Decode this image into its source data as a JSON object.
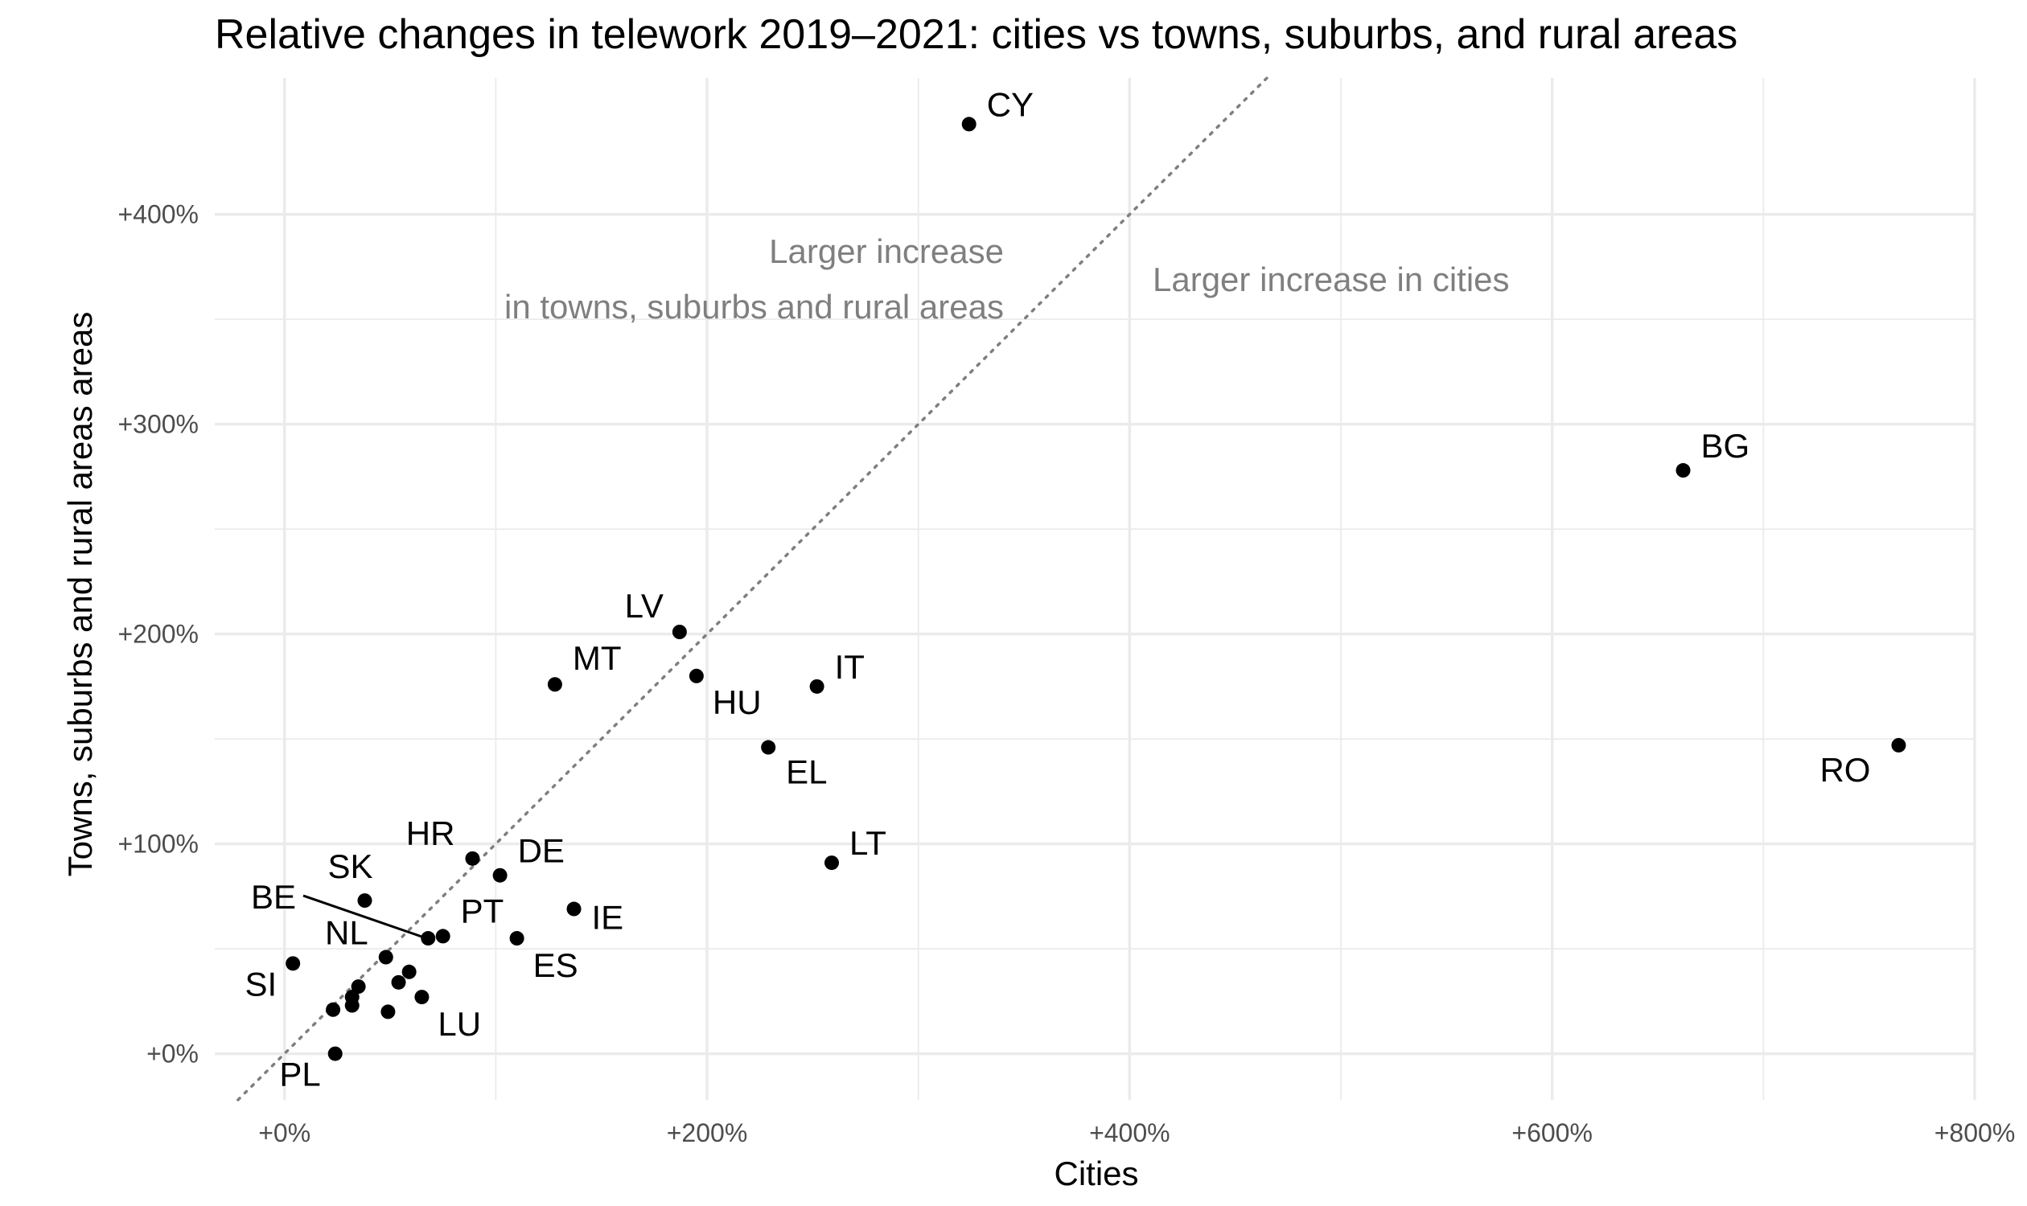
{
  "chart_data": {
    "type": "scatter",
    "title": "Relative changes in telework 2019–2021: cities vs towns, suburbs, and rural areas",
    "xlabel": "Cities",
    "ylabel": "Towns, suburbs and rural areas areas",
    "xlim": [
      -33,
      800
    ],
    "ylim": [
      -22,
      465
    ],
    "x_ticks": [
      {
        "value": 0,
        "label": "+0%"
      },
      {
        "value": 200,
        "label": "+200%"
      },
      {
        "value": 400,
        "label": "+400%"
      },
      {
        "value": 600,
        "label": "+600%"
      },
      {
        "value": 800,
        "label": "+800%"
      }
    ],
    "y_ticks": [
      {
        "value": 0,
        "label": "+0%"
      },
      {
        "value": 100,
        "label": "+100%"
      },
      {
        "value": 200,
        "label": "+200%"
      },
      {
        "value": 300,
        "label": "+300%"
      },
      {
        "value": 400,
        "label": "+400%"
      }
    ],
    "grid": true,
    "reference_line": {
      "type": "identity",
      "style": "dotted"
    },
    "annotations": [
      {
        "lines": [
          "Larger increase",
          "in towns, suburbs and rural areas"
        ],
        "x": 340,
        "y": 385
      },
      {
        "lines": [
          "Larger increase in cities"
        ],
        "x": 410,
        "y": 370
      }
    ],
    "points": [
      {
        "label": "CY",
        "x": 324,
        "y": 443
      },
      {
        "label": "BG",
        "x": 662,
        "y": 278
      },
      {
        "label": "RO",
        "x": 764,
        "y": 147
      },
      {
        "label": "LV",
        "x": 187,
        "y": 201
      },
      {
        "label": "HU",
        "x": 195,
        "y": 180
      },
      {
        "label": "MT",
        "x": 128,
        "y": 176
      },
      {
        "label": "IT",
        "x": 252,
        "y": 175
      },
      {
        "label": "EL",
        "x": 229,
        "y": 146
      },
      {
        "label": "LT",
        "x": 259,
        "y": 91
      },
      {
        "label": "HR",
        "x": 89,
        "y": 93
      },
      {
        "label": "DE",
        "x": 102,
        "y": 85
      },
      {
        "label": "SK",
        "x": 38,
        "y": 73
      },
      {
        "label": "IE",
        "x": 137,
        "y": 69
      },
      {
        "label": "PT",
        "x": 75,
        "y": 56
      },
      {
        "label": "BE",
        "x": 68,
        "y": 55
      },
      {
        "label": "ES",
        "x": 110,
        "y": 55
      },
      {
        "label": "NL",
        "x": 48,
        "y": 46
      },
      {
        "label": "SI",
        "x": 4,
        "y": 43
      },
      {
        "label": "",
        "x": 59,
        "y": 39
      },
      {
        "label": "",
        "x": 54,
        "y": 34
      },
      {
        "label": "",
        "x": 35,
        "y": 32
      },
      {
        "label": "",
        "x": 32,
        "y": 27
      },
      {
        "label": "LU",
        "x": 65,
        "y": 27
      },
      {
        "label": "",
        "x": 32,
        "y": 23
      },
      {
        "label": "",
        "x": 23,
        "y": 21
      },
      {
        "label": "",
        "x": 49,
        "y": 20
      },
      {
        "label": "PL",
        "x": 24,
        "y": 0
      }
    ]
  }
}
